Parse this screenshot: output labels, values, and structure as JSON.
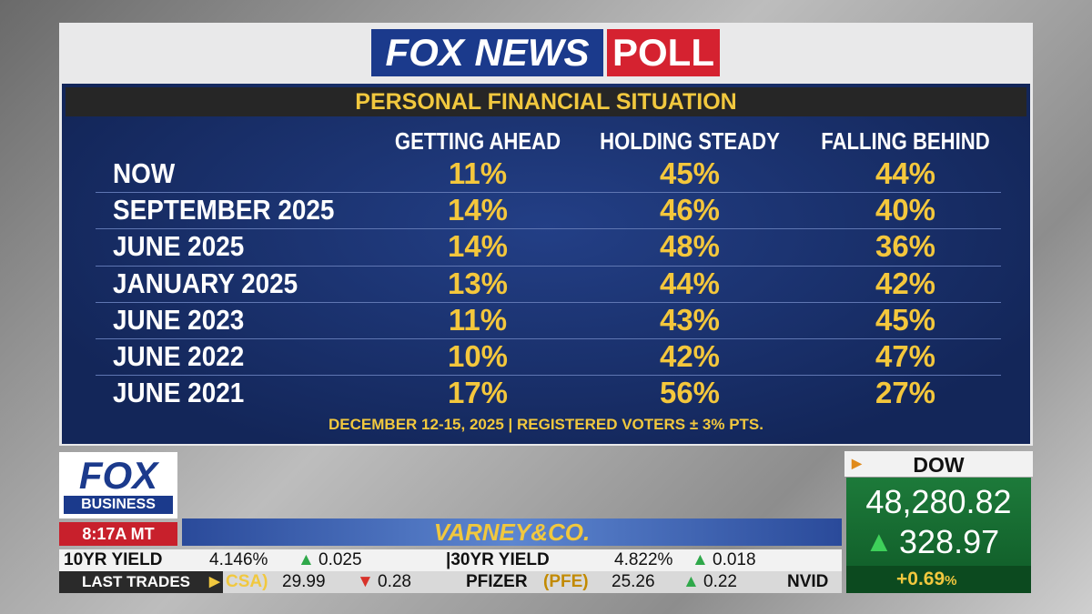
{
  "header": {
    "brand": "FOX NEWS",
    "badge": "POLL"
  },
  "table": {
    "title": "PERSONAL FINANCIAL SITUATION",
    "columns": [
      "GETTING AHEAD",
      "HOLDING STEADY",
      "FALLING BEHIND"
    ],
    "rows": [
      [
        "NOW",
        "11%",
        "45%",
        "44%"
      ],
      [
        "SEPTEMBER 2025",
        "14%",
        "46%",
        "40%"
      ],
      [
        "JUNE 2025",
        "14%",
        "48%",
        "36%"
      ],
      [
        "JANUARY 2025",
        "13%",
        "44%",
        "42%"
      ],
      [
        "JUNE 2023",
        "11%",
        "43%",
        "45%"
      ],
      [
        "JUNE 2022",
        "10%",
        "42%",
        "47%"
      ],
      [
        "JUNE 2021",
        "17%",
        "56%",
        "27%"
      ]
    ],
    "footnote": "DECEMBER 12-15, 2025 | REGISTERED VOTERS ± 3% PTS."
  },
  "network": {
    "brand": "FOX",
    "sub": "BUSINESS",
    "time": "8:17A MT",
    "show": "VARNEY&CO."
  },
  "ticker": {
    "yields": [
      {
        "label": "10YR YIELD",
        "value": "4.146%",
        "change": "0.025"
      },
      {
        "label": "30YR YIELD",
        "value": "4.822%",
        "change": "0.018"
      }
    ],
    "last_trades": {
      "label": "LAST TRADES",
      "items": [
        {
          "name": "CSA)",
          "price": "29.99",
          "change": "0.28"
        },
        {
          "name": "PFIZER",
          "symbol": "(PFE)",
          "price": "25.26",
          "change": "0.22"
        },
        {
          "name": "NVID"
        }
      ]
    }
  },
  "dow": {
    "label": "DOW",
    "value": "48,280.82",
    "change": "328.97",
    "percent": "+0.69",
    "unit": "%"
  }
}
